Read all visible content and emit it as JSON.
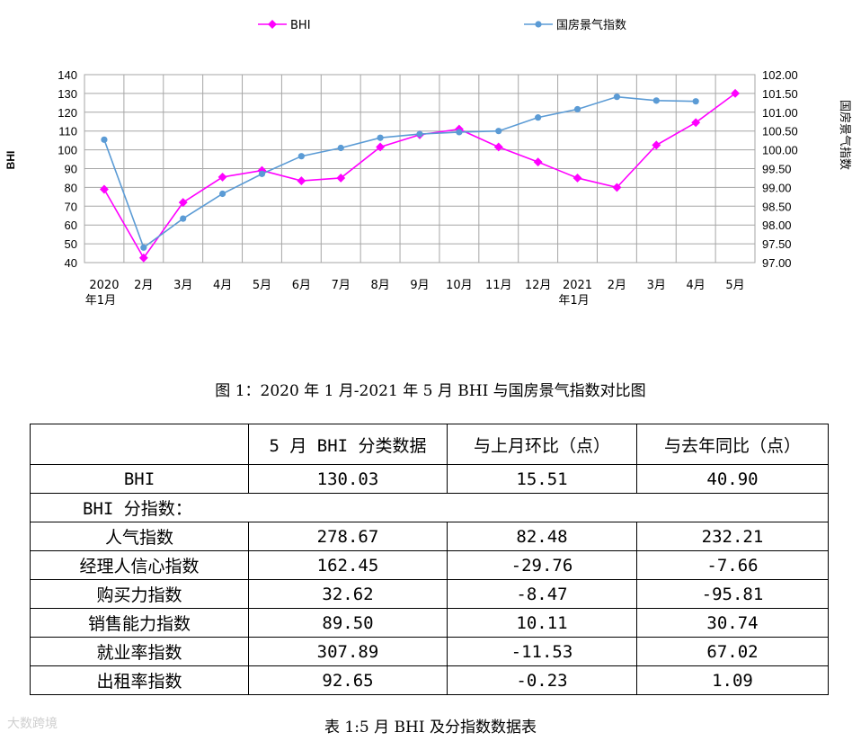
{
  "chart_data": {
    "type": "line",
    "categories": [
      "2020\n年1月",
      "2月",
      "3月",
      "4月",
      "5月",
      "6月",
      "7月",
      "8月",
      "9月",
      "10月",
      "11月",
      "12月",
      "2021\n年1月",
      "2月",
      "3月",
      "4月",
      "5月"
    ],
    "series": [
      {
        "name": "BHI",
        "axis": "left",
        "color": "#ff00ff",
        "values": [
          79,
          42.5,
          72,
          85.5,
          89,
          83.5,
          85,
          101.5,
          108,
          111,
          101.5,
          93.5,
          85,
          80,
          102.5,
          114.5,
          130.03
        ]
      },
      {
        "name": "国房景气指数",
        "axis": "right",
        "color": "#5b9bd5",
        "values": [
          100.27,
          97.4,
          98.17,
          98.83,
          99.36,
          99.83,
          100.05,
          100.32,
          100.42,
          100.47,
          100.5,
          100.86,
          101.08,
          101.41,
          101.31,
          101.29,
          null
        ]
      }
    ],
    "y_left": {
      "min": 40,
      "max": 140,
      "step": 10,
      "label": "BHI",
      "ticks": [
        "40",
        "50",
        "60",
        "70",
        "80",
        "90",
        "100",
        "110",
        "120",
        "130",
        "140"
      ]
    },
    "y_right": {
      "min": 97.0,
      "max": 102.0,
      "step": 0.5,
      "label": "国房景气指数",
      "ticks": [
        "97.00",
        "97.50",
        "98.00",
        "98.50",
        "99.00",
        "99.50",
        "100.00",
        "100.50",
        "101.00",
        "101.50",
        "102.00"
      ]
    },
    "grid": true,
    "legend": "top"
  },
  "figure_caption": "图 1：2020 年 1 月-2021 年 5 月 BHI 与国房景气指数对比图",
  "table": {
    "headers": [
      "",
      "5 月 BHI 分类数据",
      "与上月环比（点）",
      "与去年同比（点）"
    ],
    "bhi_row": [
      "BHI",
      "130.03",
      "15.51",
      "40.90"
    ],
    "sub_label": "BHI 分指数：",
    "rows": [
      [
        "人气指数",
        "278.67",
        "82.48",
        "232.21"
      ],
      [
        "经理人信心指数",
        "162.45",
        "-29.76",
        "-7.66"
      ],
      [
        "购买力指数",
        "32.62",
        "-8.47",
        "-95.81"
      ],
      [
        "销售能力指数",
        "89.50",
        "10.11",
        "30.74"
      ],
      [
        "就业率指数",
        "307.89",
        "-11.53",
        "67.02"
      ],
      [
        "出租率指数",
        "92.65",
        "-0.23",
        "1.09"
      ]
    ]
  },
  "table_caption": "表 1:5 月 BHI 及分指数数据表",
  "watermark": "大数跨境"
}
